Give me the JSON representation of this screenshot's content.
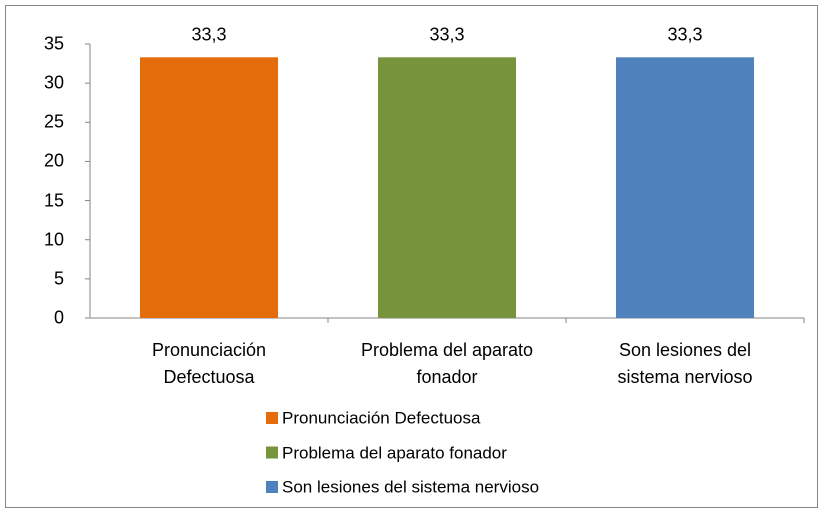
{
  "chart_data": {
    "type": "bar",
    "categories": [
      "Pronunciación Defectuosa",
      "Problema del aparato fonador",
      "Son lesiones del sistema nervioso"
    ],
    "values": [
      33.3,
      33.3,
      33.3
    ],
    "value_labels": [
      "33,3",
      "33,3",
      "33,3"
    ],
    "colors": [
      "#e46c0a",
      "#77933c",
      "#4f81bd"
    ],
    "ylim": [
      0,
      35
    ],
    "yticks": [
      0,
      5,
      10,
      15,
      20,
      25,
      30,
      35
    ],
    "legend": "bottom"
  }
}
